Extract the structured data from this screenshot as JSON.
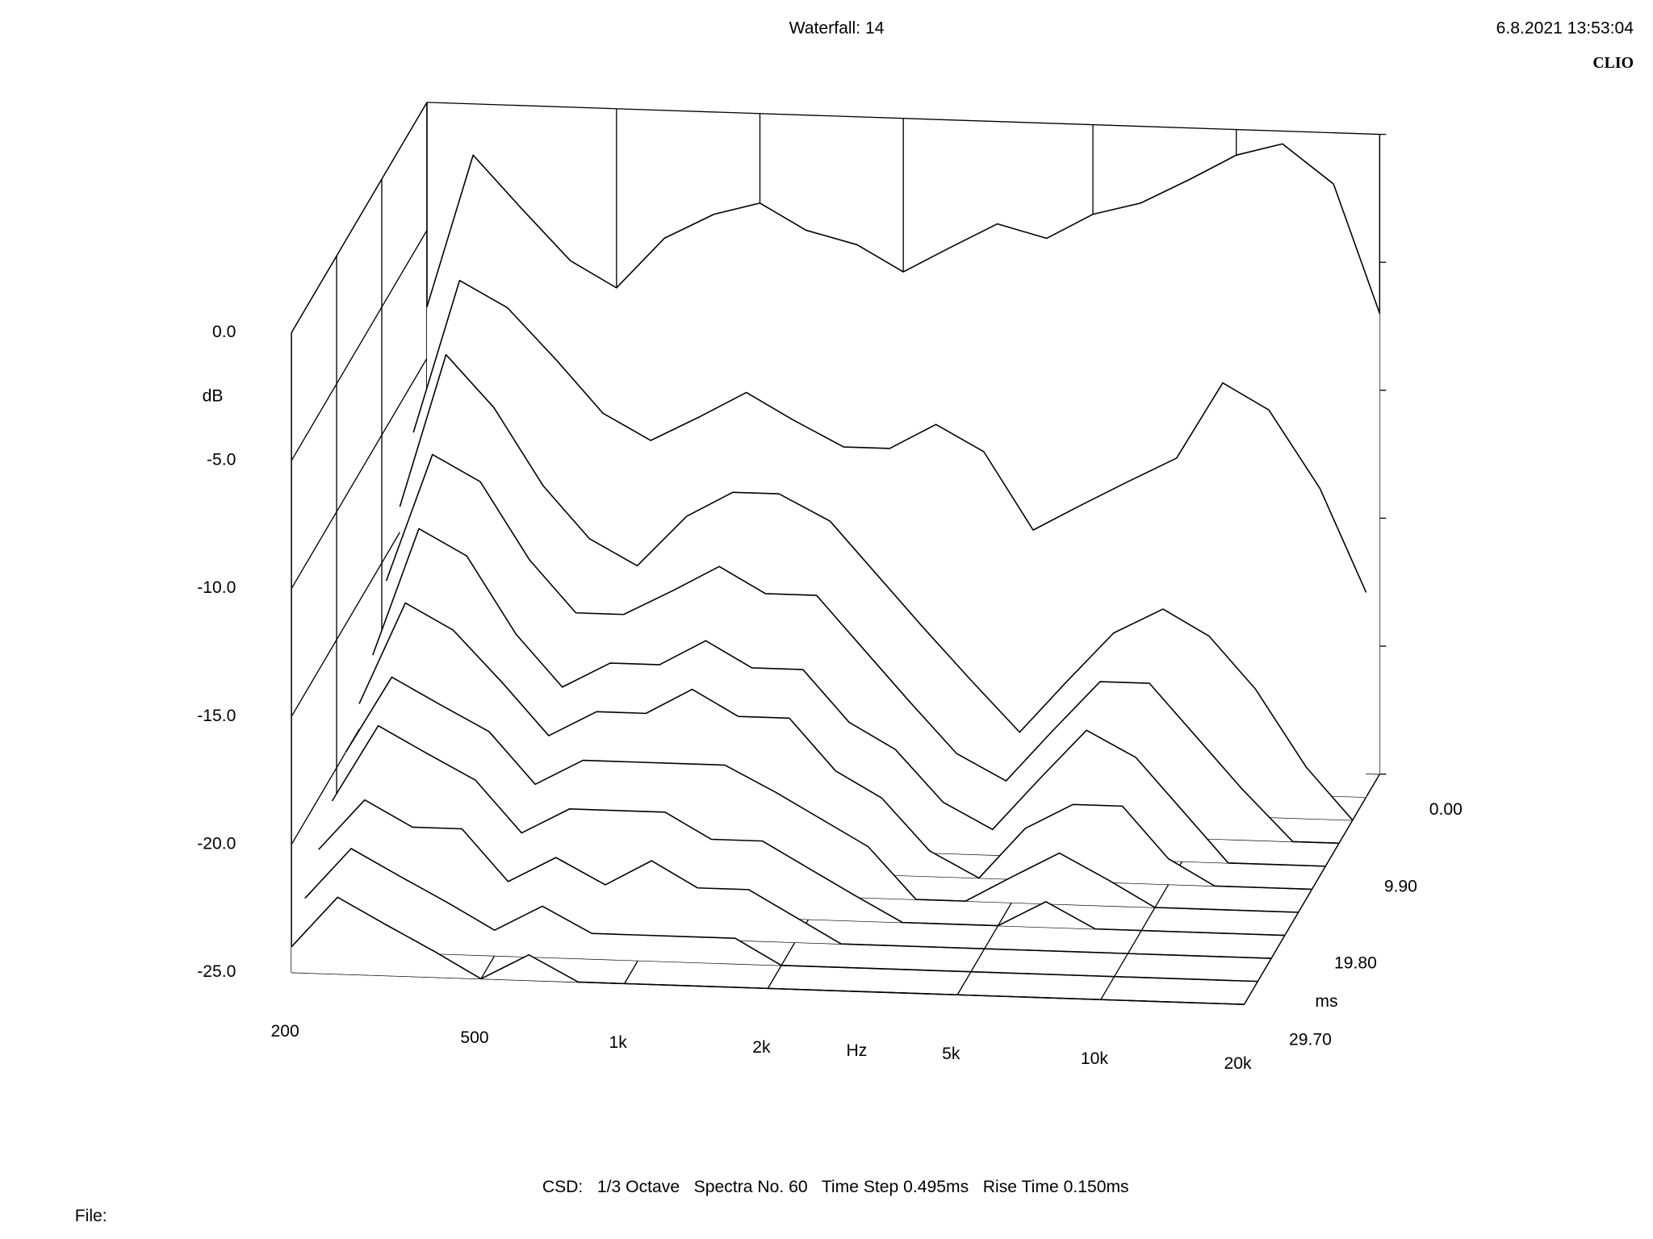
{
  "chart_data": {
    "type": "waterfall",
    "title": "Waterfall: 14",
    "x_label": "Hz",
    "y_label": "dB",
    "z_label": "ms",
    "log_x": true,
    "color": "#000000",
    "x": [
      200,
      250,
      315,
      400,
      500,
      630,
      800,
      1000,
      1250,
      1600,
      2000,
      2500,
      3150,
      4000,
      5000,
      6300,
      8000,
      10000,
      12500,
      16000,
      20000
    ],
    "z": [
      0,
      2.97,
      5.94,
      8.91,
      11.88,
      14.85,
      17.82,
      20.79,
      23.76,
      26.73,
      29.7
    ],
    "series": [
      {
        "values": [
          -8,
          -2,
          -4,
          -6,
          -7,
          -5,
          -4,
          -3.5,
          -4.5,
          -5,
          -6,
          -5,
          -4,
          -4.5,
          -3.5,
          -3,
          -2,
          -1,
          -0.5,
          -2,
          -7
        ]
      },
      {
        "values": [
          -12,
          -6,
          -7,
          -9,
          -11,
          -12,
          -11,
          -10,
          -11,
          -12,
          -12,
          -11,
          -12,
          -15,
          -14,
          -13,
          -12,
          -9,
          -10,
          -13,
          -17
        ]
      },
      {
        "values": [
          -14,
          -8,
          -10,
          -13,
          -15,
          -16,
          -14,
          -13,
          -13,
          -14,
          -16,
          -18,
          -20,
          -22,
          -20,
          -18,
          -17,
          -18,
          -20,
          -23,
          -25
        ]
      },
      {
        "values": [
          -16,
          -11,
          -12,
          -15,
          -17,
          -17,
          -16,
          -15,
          -16,
          -16,
          -18,
          -20,
          -22,
          -23,
          -21,
          -19,
          -19,
          -21,
          -23,
          -25,
          -25
        ]
      },
      {
        "values": [
          -18,
          -13,
          -14,
          -17,
          -19,
          -18,
          -18,
          -17,
          -18,
          -18,
          -20,
          -21,
          -23,
          -24,
          -22,
          -20,
          -21,
          -23,
          -25,
          -25,
          -25
        ]
      },
      {
        "values": [
          -19,
          -15,
          -16,
          -18,
          -20,
          -19,
          -19,
          -18,
          -19,
          -19,
          -21,
          -22,
          -24,
          -25,
          -23,
          -22,
          -22,
          -24,
          -25,
          -25,
          -25
        ]
      },
      {
        "values": [
          -20,
          -17,
          -18,
          -19,
          -21,
          -20,
          -20,
          -20,
          -20,
          -21,
          -22,
          -23,
          -25,
          -25,
          -24,
          -23,
          -24,
          -25,
          -25,
          -25,
          -25
        ]
      },
      {
        "values": [
          -21,
          -18,
          -19,
          -20,
          -22,
          -21,
          -21,
          -21,
          -22,
          -22,
          -23,
          -24,
          -25,
          -25,
          -25,
          -24,
          -25,
          -25,
          -25,
          -25,
          -25
        ]
      },
      {
        "values": [
          -22,
          -20,
          -21,
          -21,
          -23,
          -22,
          -23,
          -22,
          -23,
          -23,
          -24,
          -25,
          -25,
          -25,
          -25,
          -25,
          -25,
          -25,
          -25,
          -25,
          -25
        ]
      },
      {
        "values": [
          -23,
          -21,
          -22,
          -23,
          -24,
          -23,
          -24,
          -24,
          -24,
          -24,
          -25,
          -25,
          -25,
          -25,
          -25,
          -25,
          -25,
          -25,
          -25,
          -25,
          -25
        ]
      },
      {
        "values": [
          -24,
          -22,
          -23,
          -24,
          -25,
          -24,
          -25,
          -25,
          -25,
          -25,
          -25,
          -25,
          -25,
          -25,
          -25,
          -25,
          -25,
          -25,
          -25,
          -25,
          -25
        ]
      }
    ],
    "xlim": [
      200,
      20000
    ],
    "xticks": [
      200,
      500,
      {
        "value": 1000,
        "label": "1k"
      },
      {
        "value": 2000,
        "label": "2k"
      },
      {
        "value": 5000,
        "label": "5k"
      },
      {
        "value": 10000,
        "label": "10k"
      },
      {
        "value": 20000,
        "label": "20k"
      }
    ],
    "ylim": [
      -25,
      0
    ],
    "yticks": [
      {
        "value": 0,
        "label": "0.0"
      },
      {
        "value": -5,
        "label": "-5.0"
      },
      {
        "value": -10,
        "label": "-10.0"
      },
      {
        "value": -15,
        "label": "-15.0"
      },
      {
        "value": -20,
        "label": "-20.0"
      },
      {
        "value": -25,
        "label": "-25.0"
      }
    ],
    "zlim": [
      0,
      29.7
    ],
    "zticks": [
      {
        "value": 0,
        "label": "0.00"
      },
      {
        "value": 9.9,
        "label": "9.90"
      },
      {
        "value": 19.8,
        "label": "19.80"
      },
      {
        "value": 29.7,
        "label": "29.70"
      }
    ]
  },
  "timestamp": "6.8.2021 13:53:04",
  "brand": "CLIO",
  "footer": "CSD:   1/3 Octave   Spectra No. 60   Time Step 0.495ms   Rise Time 0.150ms",
  "file_label": "File:"
}
